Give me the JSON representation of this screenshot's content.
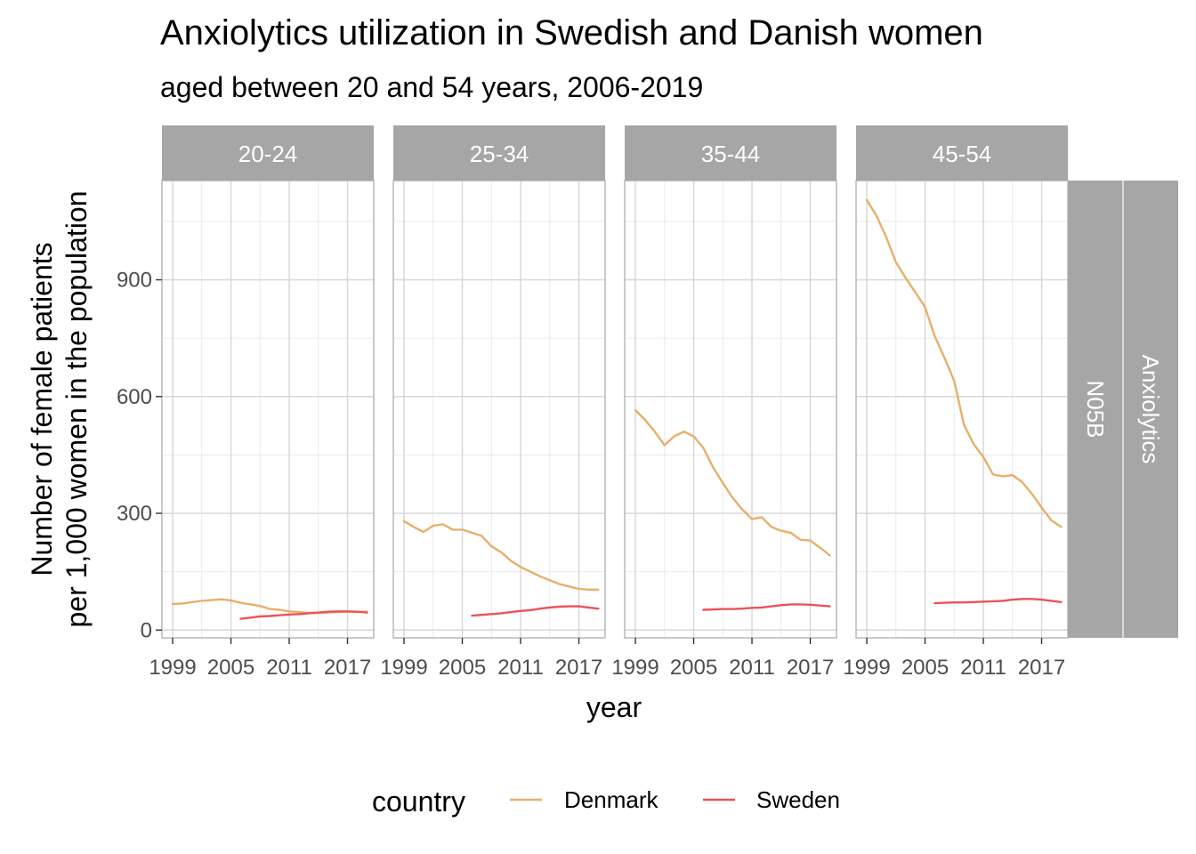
{
  "chart_data": {
    "type": "line",
    "title": "Anxiolytics utilization in Swedish and Danish women",
    "subtitle": "aged between 20 and 54 years, 2006-2019",
    "xlabel": "year",
    "ylabel_line1": "Number of female patients",
    "ylabel_line2": "per 1,000 women in the population",
    "x_ticks": [
      "1999",
      "2005",
      "2011",
      "2017"
    ],
    "y_ticks": [
      "0",
      "300",
      "600",
      "900"
    ],
    "xlim": [
      1997.9,
      2019.7
    ],
    "ylim": [
      -20,
      1155
    ],
    "row_strips": [
      "N05B",
      "Anxiolytics"
    ],
    "legend": {
      "title": "country",
      "position": "bottom",
      "items": [
        {
          "label": "Denmark",
          "color": "#E8AF6A"
        },
        {
          "label": "Sweden",
          "color": "#EE5159"
        }
      ]
    },
    "facets": [
      {
        "label": "20-24",
        "series": [
          {
            "name": "Denmark",
            "color": "#E8AF6A",
            "x": [
              1999,
              2000,
              2001,
              2002,
              2003,
              2004,
              2005,
              2006,
              2007,
              2008,
              2009,
              2010,
              2011,
              2012,
              2013,
              2014,
              2015,
              2016,
              2017,
              2018,
              2019
            ],
            "y": [
              67,
              68,
              72,
              75,
              77,
              79,
              76,
              70,
              66,
              62,
              54,
              52,
              48,
              46,
              44,
              44,
              45,
              46,
              47,
              47,
              47
            ]
          },
          {
            "name": "Sweden",
            "color": "#EE5159",
            "x": [
              2006,
              2007,
              2008,
              2009,
              2010,
              2011,
              2012,
              2013,
              2014,
              2015,
              2016,
              2017,
              2018,
              2019
            ],
            "y": [
              29,
              32,
              35,
              36,
              38,
              40,
              41,
              43,
              45,
              47,
              48,
              48,
              47,
              45
            ]
          }
        ]
      },
      {
        "label": "25-34",
        "series": [
          {
            "name": "Denmark",
            "color": "#E8AF6A",
            "x": [
              1999,
              2000,
              2001,
              2002,
              2003,
              2004,
              2005,
              2006,
              2007,
              2008,
              2009,
              2010,
              2011,
              2012,
              2013,
              2014,
              2015,
              2016,
              2017,
              2018,
              2019
            ],
            "y": [
              280,
              265,
              252,
              268,
              272,
              258,
              258,
              250,
              242,
              215,
              200,
              178,
              162,
              150,
              138,
              128,
              118,
              112,
              106,
              104,
              104
            ]
          },
          {
            "name": "Sweden",
            "color": "#EE5159",
            "x": [
              2006,
              2007,
              2008,
              2009,
              2010,
              2011,
              2012,
              2013,
              2014,
              2015,
              2016,
              2017,
              2018,
              2019
            ],
            "y": [
              37,
              39,
              41,
              43,
              46,
              49,
              51,
              55,
              58,
              60,
              61,
              61,
              58,
              55
            ]
          }
        ]
      },
      {
        "label": "35-44",
        "series": [
          {
            "name": "Denmark",
            "color": "#E8AF6A",
            "x": [
              1999,
              2000,
              2001,
              2002,
              2003,
              2004,
              2005,
              2006,
              2007,
              2008,
              2009,
              2010,
              2011,
              2012,
              2013,
              2014,
              2015,
              2016,
              2017,
              2018,
              2019
            ],
            "y": [
              565,
              540,
              510,
              475,
              498,
              510,
              498,
              468,
              418,
              378,
              340,
              310,
              285,
              290,
              265,
              255,
              250,
              232,
              230,
              212,
              192
            ]
          },
          {
            "name": "Sweden",
            "color": "#EE5159",
            "x": [
              2006,
              2007,
              2008,
              2009,
              2010,
              2011,
              2012,
              2013,
              2014,
              2015,
              2016,
              2017,
              2018,
              2019
            ],
            "y": [
              52,
              53,
              54,
              54,
              55,
              57,
              58,
              61,
              64,
              66,
              66,
              65,
              63,
              61
            ]
          }
        ]
      },
      {
        "label": "45-54",
        "series": [
          {
            "name": "Denmark",
            "color": "#E8AF6A",
            "x": [
              1999,
              2000,
              2001,
              2002,
              2003,
              2004,
              2005,
              2006,
              2007,
              2008,
              2009,
              2010,
              2011,
              2012,
              2013,
              2014,
              2015,
              2016,
              2017,
              2018,
              2019
            ],
            "y": [
              1105,
              1065,
              1010,
              945,
              905,
              868,
              830,
              755,
              700,
              640,
              528,
              478,
              445,
              400,
              395,
              398,
              380,
              350,
              315,
              282,
              265
            ]
          },
          {
            "name": "Sweden",
            "color": "#EE5159",
            "x": [
              2006,
              2007,
              2008,
              2009,
              2010,
              2011,
              2012,
              2013,
              2014,
              2015,
              2016,
              2017,
              2018,
              2019
            ],
            "y": [
              69,
              70,
              71,
              71,
              72,
              73,
              74,
              75,
              78,
              80,
              80,
              78,
              75,
              72
            ]
          }
        ]
      }
    ]
  }
}
